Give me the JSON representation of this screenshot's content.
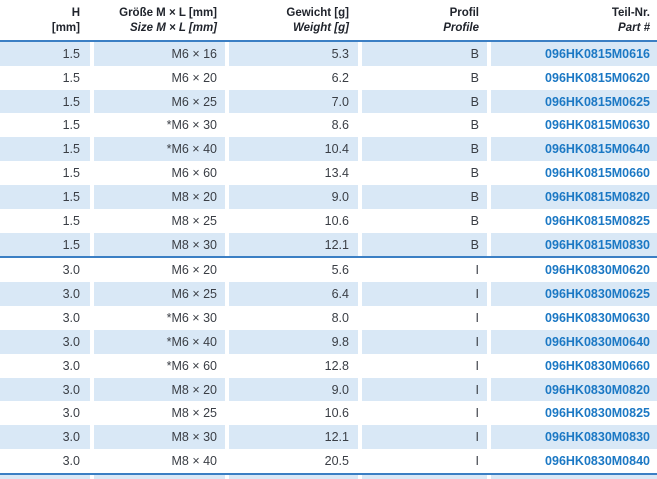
{
  "header": {
    "columns": [
      {
        "de": "H",
        "en": "[mm]"
      },
      {
        "de": "Größe M × L [mm]",
        "en": "Size M × L [mm]"
      },
      {
        "de": "Gewicht [g]",
        "en": "Weight [g]"
      },
      {
        "de": "Profil",
        "en": "Profile"
      },
      {
        "de": "Teil-Nr.",
        "en": "Part #"
      }
    ]
  },
  "sections": [
    {
      "rows": [
        [
          "1.5",
          "M6 × 16",
          "5.3",
          "B",
          "096HK0815M0616"
        ],
        [
          "1.5",
          "M6 × 20",
          "6.2",
          "B",
          "096HK0815M0620"
        ],
        [
          "1.5",
          "M6 × 25",
          "7.0",
          "B",
          "096HK0815M0625"
        ],
        [
          "1.5",
          "*M6 × 30",
          "8.6",
          "B",
          "096HK0815M0630"
        ],
        [
          "1.5",
          "*M6 × 40",
          "10.4",
          "B",
          "096HK0815M0640"
        ],
        [
          "1.5",
          "M6 × 60",
          "13.4",
          "B",
          "096HK0815M0660"
        ],
        [
          "1.5",
          "M8 × 20",
          "9.0",
          "B",
          "096HK0815M0820"
        ],
        [
          "1.5",
          "M8 × 25",
          "10.6",
          "B",
          "096HK0815M0825"
        ],
        [
          "1.5",
          "M8 × 30",
          "12.1",
          "B",
          "096HK0815M0830"
        ]
      ]
    },
    {
      "rows": [
        [
          "3.0",
          "M6 × 20",
          "5.6",
          "I",
          "096HK0830M0620"
        ],
        [
          "3.0",
          "M6 × 25",
          "6.4",
          "I",
          "096HK0830M0625"
        ],
        [
          "3.0",
          "*M6 × 30",
          "8.0",
          "I",
          "096HK0830M0630"
        ],
        [
          "3.0",
          "*M6 × 40",
          "9.8",
          "I",
          "096HK0830M0640"
        ],
        [
          "3.0",
          "*M6 × 60",
          "12.8",
          "I",
          "096HK0830M0660"
        ],
        [
          "3.0",
          "M8 × 20",
          "9.0",
          "I",
          "096HK0830M0820"
        ],
        [
          "3.0",
          "M8 × 25",
          "10.6",
          "I",
          "096HK0830M0825"
        ],
        [
          "3.0",
          "M8 × 30",
          "12.1",
          "I",
          "096HK0830M0830"
        ],
        [
          "3.0",
          "M8 × 40",
          "20.5",
          "I",
          "096HK0830M0840"
        ]
      ]
    }
  ],
  "colors": {
    "row_stripe": "#d9e8f6",
    "rule_blue": "#3b7fc4",
    "part_number_blue": "#1b78c4",
    "header_text": "#20242c",
    "body_text": "#3a3e45"
  }
}
